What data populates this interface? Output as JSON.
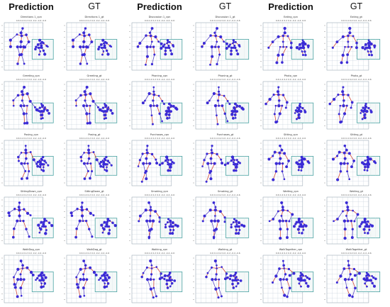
{
  "headers": [
    "Prediction",
    "GT",
    "Prediction",
    "GT",
    "Prediction",
    "GT"
  ],
  "tick_row": "0.6 0.4 0.2 0.0 -0.2 -0.4 -0.6",
  "colors": {
    "joint": "#3a2bd6",
    "bone_pred": "#d0483a",
    "bone_gt": "#c8503c",
    "grid": "#c9d3dc",
    "inset": "#4aa3a3"
  },
  "panels": [
    [
      "Directions 1_cpn",
      "Directions 1_gt",
      "Discussion 1_cpn",
      "Discussion 1_gt",
      "Eating_cpn",
      "Eating_gt"
    ],
    [
      "Greeting_cpn",
      "Greeting_gt",
      "Phoning_cpn",
      "Phoning_gt",
      "Photo_cpn",
      "Photo_gt"
    ],
    [
      "Posing_cpn",
      "Posing_gt",
      "Purchases_cpn",
      "Purchases_gt",
      "Sitting_cpn",
      "Sitting_gt"
    ],
    [
      "SittingDown_cpn",
      "SittingDown_gt",
      "Smoking_cpn",
      "Smoking_gt",
      "Waiting_cpn",
      "Waiting_gt"
    ],
    [
      "WalkDog_cpn",
      "WalkDog_gt",
      "Walking_cpn",
      "Walking_gt",
      "WalkTogether_cpn",
      "WalkTogether_gt"
    ]
  ]
}
